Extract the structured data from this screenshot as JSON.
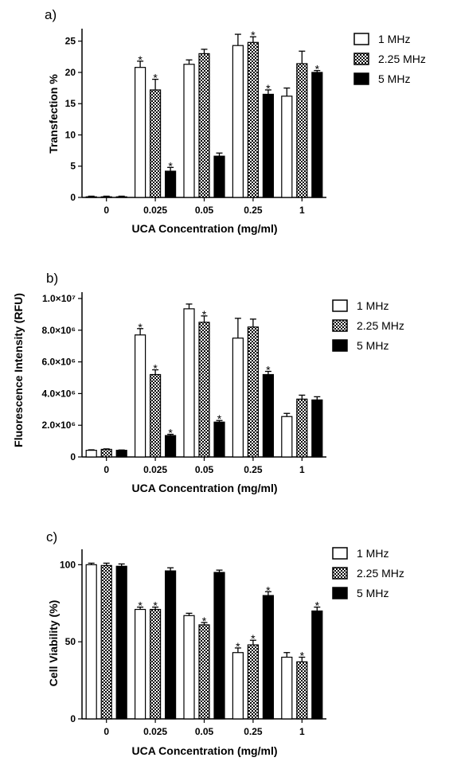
{
  "chart_data": [
    {
      "type": "bar",
      "panel_label": "a)",
      "categories": [
        "0",
        "0.025",
        "0.05",
        "0.25",
        "1"
      ],
      "xlabel": "UCA Concentration  (mg/ml)",
      "ylabel": "Transfection %",
      "ylim": [
        0,
        27
      ],
      "yticks": [
        0,
        5,
        10,
        15,
        20,
        25
      ],
      "ytick_labels": [
        "0",
        "5",
        "10",
        "15",
        "20",
        "25"
      ],
      "series": [
        {
          "name": "1 MHz",
          "pattern": "white",
          "values": [
            0.1,
            20.8,
            21.3,
            24.3,
            16.2
          ],
          "errors": [
            0.1,
            1.0,
            0.7,
            1.8,
            1.3
          ],
          "significant": [
            false,
            true,
            false,
            false,
            false
          ]
        },
        {
          "name": "2.25 MHz",
          "pattern": "checker",
          "values": [
            0.1,
            17.2,
            23.0,
            24.8,
            21.4
          ],
          "errors": [
            0.1,
            1.7,
            0.7,
            0.9,
            2.0
          ],
          "significant": [
            false,
            true,
            false,
            true,
            false
          ]
        },
        {
          "name": "5 MHz",
          "pattern": "black",
          "values": [
            0.1,
            4.2,
            6.6,
            16.5,
            20.0
          ],
          "errors": [
            0.1,
            0.6,
            0.5,
            0.7,
            0.3
          ],
          "significant": [
            false,
            true,
            false,
            true,
            true
          ]
        }
      ],
      "legend_position": "top-right",
      "grid": false
    },
    {
      "type": "bar",
      "panel_label": "b)",
      "categories": [
        "0",
        "0.025",
        "0.05",
        "0.25",
        "1"
      ],
      "xlabel": "UCA Concentration  (mg/ml)",
      "ylabel": "Fluorescence  Intensity (RFU)",
      "ylim": [
        0,
        10400000
      ],
      "yticks": [
        0,
        2000000,
        4000000,
        6000000,
        8000000,
        10000000
      ],
      "ytick_labels": [
        "0",
        "2.0×10⁶",
        "4.0×10⁶",
        "6.0×10⁶",
        "8.0×10⁶",
        "1.0×10⁷"
      ],
      "series": [
        {
          "name": "1 MHz",
          "pattern": "white",
          "values": [
            420000,
            7700000,
            9350000,
            7500000,
            2550000
          ],
          "errors": [
            30000,
            400000,
            300000,
            1250000,
            200000
          ],
          "significant": [
            false,
            true,
            false,
            false,
            false
          ]
        },
        {
          "name": "2.25 MHz",
          "pattern": "checker",
          "values": [
            480000,
            5200000,
            8500000,
            8200000,
            3650000
          ],
          "errors": [
            30000,
            300000,
            400000,
            500000,
            250000
          ],
          "significant": [
            false,
            true,
            true,
            false,
            false
          ]
        },
        {
          "name": "5 MHz",
          "pattern": "black",
          "values": [
            420000,
            1350000,
            2200000,
            5200000,
            3600000
          ],
          "errors": [
            20000,
            80000,
            100000,
            200000,
            200000
          ],
          "significant": [
            false,
            true,
            true,
            true,
            false
          ]
        }
      ],
      "legend_position": "top-right",
      "grid": false
    },
    {
      "type": "bar",
      "panel_label": "c)",
      "categories": [
        "0",
        "0.025",
        "0.05",
        "0.25",
        "1"
      ],
      "xlabel": "UCA Concentration  (mg/ml)",
      "ylabel": "Cell Viability (%)",
      "ylim": [
        0,
        110
      ],
      "yticks": [
        0,
        50,
        100
      ],
      "ytick_labels": [
        "0",
        "50",
        "100"
      ],
      "series": [
        {
          "name": "1 MHz",
          "pattern": "white",
          "values": [
            100,
            71,
            67,
            43,
            40
          ],
          "errors": [
            1,
            1.5,
            1.5,
            3,
            3
          ],
          "significant": [
            false,
            true,
            false,
            true,
            false
          ]
        },
        {
          "name": "2.25 MHz",
          "pattern": "checker",
          "values": [
            99.5,
            71,
            61,
            48,
            37
          ],
          "errors": [
            1.5,
            1.5,
            1.5,
            3,
            3
          ],
          "significant": [
            false,
            true,
            true,
            true,
            true
          ]
        },
        {
          "name": "5 MHz",
          "pattern": "black",
          "values": [
            99,
            96,
            95,
            80,
            70
          ],
          "errors": [
            1.5,
            2,
            1.5,
            2.5,
            2.5
          ],
          "significant": [
            false,
            false,
            false,
            true,
            true
          ]
        }
      ],
      "legend_position": "top-right",
      "grid": false
    }
  ],
  "significance_marker": "*"
}
